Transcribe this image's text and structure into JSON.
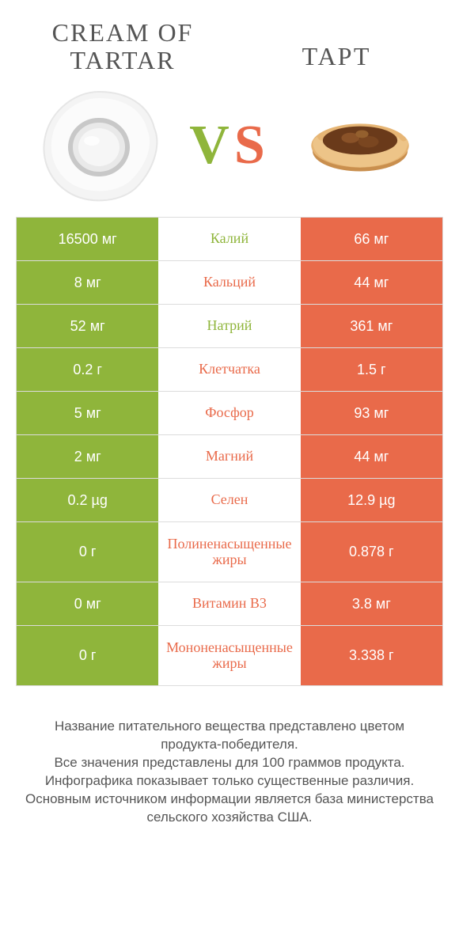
{
  "colors": {
    "green": "#8fb53b",
    "orange": "#e96a4a",
    "text": "#555555"
  },
  "titles": {
    "left": "CREAM OF TARTAR",
    "right": "ТАРТ",
    "vs_v": "V",
    "vs_s": "S"
  },
  "table": {
    "rows": [
      {
        "left": "16500 мг",
        "mid": "Калий",
        "right": "66 мг",
        "winner": "left",
        "tall": false
      },
      {
        "left": "8 мг",
        "mid": "Кальций",
        "right": "44 мг",
        "winner": "right",
        "tall": false
      },
      {
        "left": "52 мг",
        "mid": "Натрий",
        "right": "361 мг",
        "winner": "left",
        "tall": false
      },
      {
        "left": "0.2 г",
        "mid": "Клетчатка",
        "right": "1.5 г",
        "winner": "right",
        "tall": false
      },
      {
        "left": "5 мг",
        "mid": "Фосфор",
        "right": "93 мг",
        "winner": "right",
        "tall": false
      },
      {
        "left": "2 мг",
        "mid": "Магний",
        "right": "44 мг",
        "winner": "right",
        "tall": false
      },
      {
        "left": "0.2 µg",
        "mid": "Селен",
        "right": "12.9 µg",
        "winner": "right",
        "tall": false
      },
      {
        "left": "0 г",
        "mid": "Полиненасыщенные жиры",
        "right": "0.878 г",
        "winner": "right",
        "tall": true
      },
      {
        "left": "0 мг",
        "mid": "Витамин B3",
        "right": "3.8 мг",
        "winner": "right",
        "tall": false
      },
      {
        "left": "0 г",
        "mid": "Мононенасыщенные жиры",
        "right": "3.338 г",
        "winner": "right",
        "tall": true
      }
    ]
  },
  "footer": {
    "l1": "Название питательного вещества представлено цветом продукта-победителя.",
    "l2": "Все значения представлены для 100 граммов продукта.",
    "l3": "Инфографика показывает только существенные различия.",
    "l4": "Основным источником информации является база министерства сельского хозяйства США."
  }
}
